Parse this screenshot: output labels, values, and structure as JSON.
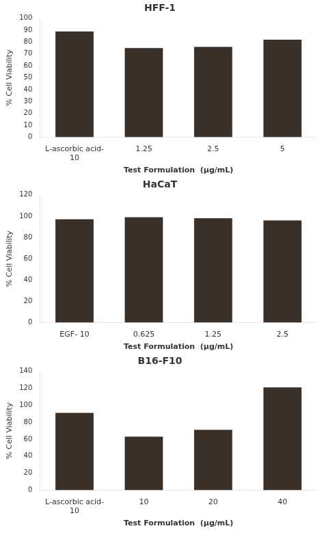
{
  "chart_data": [
    {
      "type": "bar",
      "title": "HFF-1",
      "categories": [
        "L-ascorbic acid-\n10",
        "1.25",
        "2.5",
        "5"
      ],
      "values": [
        89,
        75,
        76,
        82
      ],
      "color": "#3a3028",
      "ylim": [
        0,
        100
      ],
      "yticks": [
        0,
        10,
        20,
        30,
        40,
        50,
        60,
        70,
        80,
        90,
        100
      ],
      "xlabel": "Test Formulation  (μg/mL)",
      "ylabel": "% Cell Viability",
      "grid": false
    },
    {
      "type": "bar",
      "title": "HaCaT",
      "categories": [
        "EGF- 10",
        "0.625",
        "1.25",
        "2.5"
      ],
      "values": [
        97,
        99,
        98,
        96
      ],
      "color": "#3a3028",
      "ylim": [
        0,
        120
      ],
      "yticks": [
        0,
        20,
        40,
        60,
        80,
        100,
        120
      ],
      "xlabel": "Test Formulation  (μg/mL)",
      "ylabel": "% Cell Viability",
      "grid": false
    },
    {
      "type": "bar",
      "title": "B16-F10",
      "categories": [
        "L-ascorbic acid-\n10",
        "10",
        "20",
        "40"
      ],
      "values": [
        91,
        63,
        71,
        121
      ],
      "color": "#3a3028",
      "ylim": [
        0,
        140
      ],
      "yticks": [
        0,
        20,
        40,
        60,
        80,
        100,
        120,
        140
      ],
      "xlabel": "Test Formulation  (μg/mL)",
      "ylabel": "% Cell Viability",
      "grid": false
    }
  ]
}
